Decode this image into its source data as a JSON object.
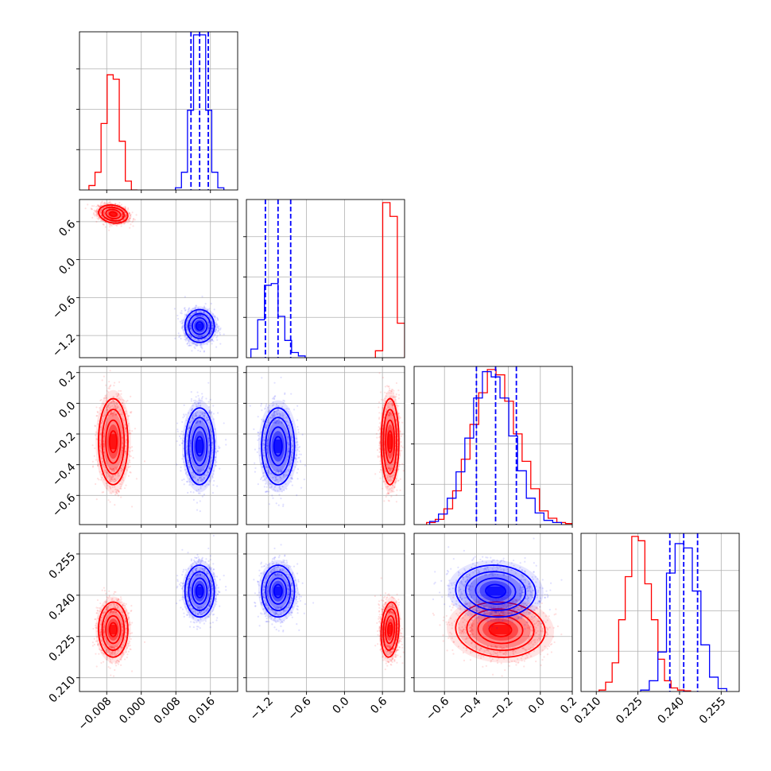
{
  "chart_data": {
    "type": "corner",
    "grid": true,
    "series": [
      {
        "color": "#ff0000",
        "params": [
          {
            "mean": -0.0065,
            "sd": 0.0017,
            "hist_counts": [
              1,
              4,
              15,
              26,
              25,
              11,
              2,
              0
            ]
          },
          {
            "mean": 0.72,
            "sd": 0.07,
            "hist_counts": [
              2,
              45,
              41,
              10
            ]
          },
          {
            "mean": -0.25,
            "sd": 0.14,
            "hist_counts": [
              0.2,
              0.5,
              1.5,
              3.2,
              6.2,
              9.5,
              12.5,
              14.7,
              14.2,
              11.7,
              8.6,
              6.0,
              3.4,
              1.3,
              0.6,
              0.2,
              0.1
            ]
          },
          {
            "mean": 0.2275,
            "sd": 0.005,
            "hist_counts": [
              0.2,
              1.3,
              4.0,
              10.0,
              16.0,
              21.6,
              21.0,
              15.0,
              10.0,
              4.5,
              1.5,
              0.5,
              0.2,
              0.1
            ]
          }
        ]
      },
      {
        "color": "#0000ff",
        "params": [
          {
            "mean": 0.0135,
            "sd": 0.0017,
            "hist_counts": [
              0.5,
              4,
              18,
              35,
              35,
              18,
              4,
              0.5
            ]
          },
          {
            "mean": -1.05,
            "sd": 0.13,
            "hist_counts": [
              2.5,
              11,
              21,
              21.5,
              12,
              5,
              1.5,
              0.5
            ]
          },
          {
            "mean": -0.28,
            "sd": 0.125,
            "hist_counts": [
              0.3,
              1.0,
              2.5,
              5.0,
              8.2,
              12.0,
              14.5,
              14.0,
              12.0,
              8.4,
              5.1,
              2.5,
              1.1,
              0.4,
              0.2
            ]
          },
          {
            "mean": 0.2415,
            "sd": 0.0047,
            "hist_counts": [
              0.2,
              1.5,
              5.5,
              16.5,
              20.6,
              20.0,
              14.0,
              6.5,
              2.0,
              0.4
            ]
          }
        ],
        "quantiles": [
          [
            0.0115,
            0.0135,
            0.0155
          ],
          [
            -1.25,
            -1.05,
            -0.85
          ],
          [
            -0.4,
            -0.28,
            -0.15
          ],
          [
            0.2365,
            0.2415,
            0.2465
          ]
        ]
      }
    ],
    "x_ranges": [
      [
        -0.0143,
        0.0223
      ],
      [
        -1.55,
        0.95
      ],
      [
        -0.79,
        0.2
      ],
      [
        0.2045,
        0.2615
      ]
    ],
    "y_ranges": [
      [
        null,
        null
      ],
      [
        -1.55,
        0.95
      ],
      [
        -0.79,
        0.24
      ],
      [
        0.205,
        0.2625
      ]
    ],
    "ticks": [
      {
        "values": [
          -0.008,
          0.0,
          0.008,
          0.016
        ],
        "labels": [
          "−0.008",
          "0.000",
          "0.008",
          "0.016"
        ]
      },
      {
        "values": [
          -1.2,
          -0.6,
          0.0,
          0.6
        ],
        "labels": [
          "−1.2",
          "−0.6",
          "0.0",
          "0.6"
        ]
      },
      {
        "values": [
          -0.6,
          -0.4,
          -0.2,
          0.0,
          0.2
        ],
        "labels": [
          "−0.6",
          "−0.4",
          "−0.2",
          "0.0",
          "0.2"
        ]
      },
      {
        "values": [
          0.21,
          0.225,
          0.24,
          0.255
        ],
        "labels": [
          "0.210",
          "0.225",
          "0.240",
          "0.255"
        ]
      }
    ],
    "correlations": {
      "red": {
        "1-0": -0.3,
        "2-0": 0.0,
        "2-1": 0.0,
        "3-0": 0.0,
        "3-1": -0.1,
        "3-2": -0.1
      },
      "blue": {
        "1-0": 0.0,
        "2-0": 0.0,
        "2-1": 0.0,
        "3-0": 0.0,
        "3-1": 0.0,
        "3-2": -0.1
      }
    }
  }
}
